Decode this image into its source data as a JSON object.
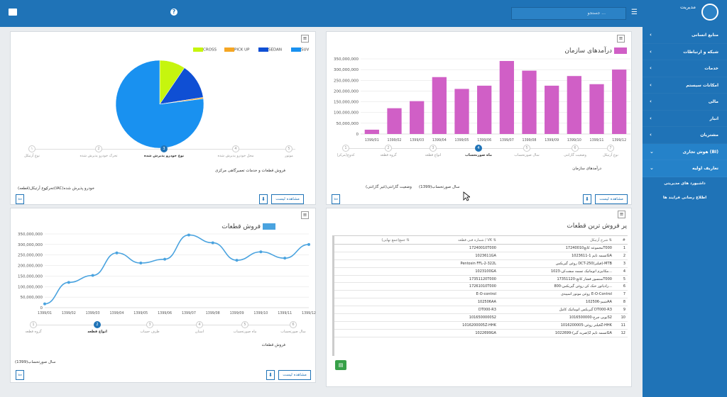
{
  "header": {
    "user_name": "مدیریت",
    "search_placeholder": "جستجو ...",
    "help_label": "?",
    "menu_label": "☰"
  },
  "sidebar": {
    "items": [
      {
        "label": "منابع انسانی"
      },
      {
        "label": "شبکه و ارتباطات"
      },
      {
        "label": "خدمات"
      },
      {
        "label": "امکانات سیستم"
      },
      {
        "label": "مالی"
      },
      {
        "label": "انبار"
      },
      {
        "label": "مشتریان"
      },
      {
        "label": "هوش تجاری (BI)"
      },
      {
        "label": "تعاریف اولیه"
      }
    ],
    "subitems": [
      {
        "label": "داشبورد های مدیریتی"
      },
      {
        "label": "اطلاع رسانی فرایند ها"
      }
    ]
  },
  "pie_panel": {
    "menu_label": "≡",
    "steps": [
      {
        "num": "۱",
        "label": "نوع آرتیکل"
      },
      {
        "num": "2",
        "label": "تحرک خودرو پذیرش شده"
      },
      {
        "num": "3",
        "label": "نوع خودرو پذیرش شده"
      },
      {
        "num": "4",
        "label": "محل خودرو پذیرش شده"
      },
      {
        "num": "5",
        "label": "موتور"
      }
    ],
    "caption": "فروش قطعات و خدمات تعمیرگاهی مرکزی",
    "filter_1": "تحرک(IAC)خودرو پذیرش شده",
    "filter_2": "نوع آرتیکل(قطعه)",
    "view_list": "مشاهده لیست",
    "download_icon": "⬇",
    "back_icon": "⇦"
  },
  "bar_panel": {
    "menu_label": "≡",
    "steps": [
      {
        "num": "1",
        "label": "کدوج(مرکز)"
      },
      {
        "num": "2",
        "label": "گروه قطعه"
      },
      {
        "num": "3",
        "label": "انواع قطعه"
      },
      {
        "num": "4",
        "label": "ماه صورتحساب"
      },
      {
        "num": "5",
        "label": "سال صورتحساب"
      },
      {
        "num": "6",
        "label": "وضعیت گارانتی"
      },
      {
        "num": "7",
        "label": "نوع آرتیکل"
      }
    ],
    "caption": "درآمدهای سازمان",
    "filter_1": "سال صورتحساب(1399)",
    "filter_2": "وضعیت گارانتی(غیر گارانتی)",
    "view_list": "مشاهده لیست",
    "download_icon": "⬇",
    "back_icon": "⇦"
  },
  "line_panel": {
    "menu_label": "≡",
    "steps": [
      {
        "num": "1",
        "label": "گروه قطعه"
      },
      {
        "num": "2",
        "label": "انواع قطعه"
      },
      {
        "num": "3",
        "label": "طرف حساب"
      },
      {
        "num": "4",
        "label": "استان"
      },
      {
        "num": "5",
        "label": "ماه صورتحساب"
      },
      {
        "num": "6",
        "label": "سال صورتحساب"
      }
    ],
    "caption": "فروش قطعات",
    "filter_1": "سال صورتحساب(1399)",
    "view_list": "مشاهده لیست",
    "download_icon": "⬇",
    "back_icon": "⇦"
  },
  "table_panel": {
    "menu_label": "≡",
    "title": "پر فروش ترین قطعات",
    "columns": [
      "#",
      "شرح آرتیکل ⇅",
      "شماره فنی قطعه / VK ⇅",
      "جمع(جمع نهایی) ⇅"
    ],
    "rows": [
      [
        "1",
        "مجموعه کاتچ17240010T000",
        "17240010T000",
        ""
      ],
      [
        "2",
        "تسمه تایم 1-1023611GA",
        "1023611GA",
        ""
      ],
      [
        "3",
        "روغن گیربکس DCT-250(فیلتر)-MTB",
        "Pentosin FFL-2-322L",
        ""
      ],
      [
        "4",
        "مکانیزم اتوماتیک تسمه سفت‌کن-1023...",
        "1023100GA",
        ""
      ],
      [
        "5",
        "سنسور فشار کاتچ-17351120T000",
        "17351120T000",
        ""
      ],
      [
        "6",
        "رادیاتور خنک کن روغن گیربکس-800...",
        "17261010T000",
        ""
      ],
      [
        "7",
        "روغن موتور اسپیدی E-O-Control",
        "E-O-control",
        ""
      ],
      [
        "8",
        "شیم-102506AA",
        "102506AA",
        ""
      ],
      [
        "9",
        "گیربکس اتوماتیک کامل DT000-R3",
        "DT000-R3",
        ""
      ],
      [
        "10",
        "توپی چرخ-1016500000S2",
        "1016500000S2",
        ""
      ],
      [
        "11",
        "فیلتر روغن-1016200005Z-HHK",
        "1016200005Z-HHK",
        ""
      ],
      [
        "12",
        "تسمه تایم 2(ضربه گیر)-1022699GA",
        "1022699GA",
        ""
      ]
    ],
    "excel_icon": "▤"
  },
  "chart_data": [
    {
      "type": "pie",
      "title": "",
      "legend": [
        "SUV",
        "SEDAN",
        "PICK UP",
        "CROSS"
      ],
      "series": [
        {
          "name": "SUV",
          "value": 77
        },
        {
          "name": "SEDAN",
          "value": 13
        },
        {
          "name": "PICK UP",
          "value": 0.5
        },
        {
          "name": "CROSS",
          "value": 9.5
        }
      ],
      "legend_placement": "top-right"
    },
    {
      "type": "bar",
      "title": "درآمدهای سازمان",
      "categories": [
        "1399/01",
        "1399/02",
        "1399/03",
        "1399/04",
        "1399/05",
        "1399/06",
        "1399/07",
        "1399/08",
        "1399/09",
        "1399/10",
        "1399/11",
        "1399/12"
      ],
      "values": [
        20000000,
        120000000,
        153000000,
        265000000,
        210000000,
        225000000,
        340000000,
        295000000,
        225000000,
        270000000,
        232000000,
        300000000
      ],
      "ylim": [
        0,
        350000000
      ],
      "yticks": [
        "0",
        "50,000,000",
        "100,000,000",
        "150,000,000",
        "200,000,000",
        "250,000,000",
        "300,000,000",
        "350,000,000"
      ],
      "legend": "درآمدهای سازمان",
      "grid": true
    },
    {
      "type": "line",
      "title": "فروش قطعات",
      "categories": [
        "1399/01",
        "1399/02",
        "1399/03",
        "1399/04",
        "1399/05",
        "1399/06",
        "1399/07",
        "1399/08",
        "1399/09",
        "1399/10",
        "1399/11",
        "1399/12"
      ],
      "values": [
        18000000,
        120000000,
        153000000,
        260000000,
        212000000,
        230000000,
        345000000,
        308000000,
        225000000,
        265000000,
        235000000,
        300000000
      ],
      "ylim": [
        0,
        350000000
      ],
      "yticks": [
        "0",
        "50,000,000",
        "100,000,000",
        "150,000,000",
        "200,000,000",
        "250,000,000",
        "300,000,000",
        "350,000,000"
      ],
      "legend": "فروش قطعات",
      "grid": true
    }
  ],
  "colors": {
    "primary": "#1f73b7",
    "pie_suv": "#1991f0",
    "pie_sedan": "#0f4fd4",
    "pie_pickup": "#f5a623",
    "pie_cross": "#c6f50e",
    "bar": "#d05fc6",
    "line": "#4aa3df"
  }
}
